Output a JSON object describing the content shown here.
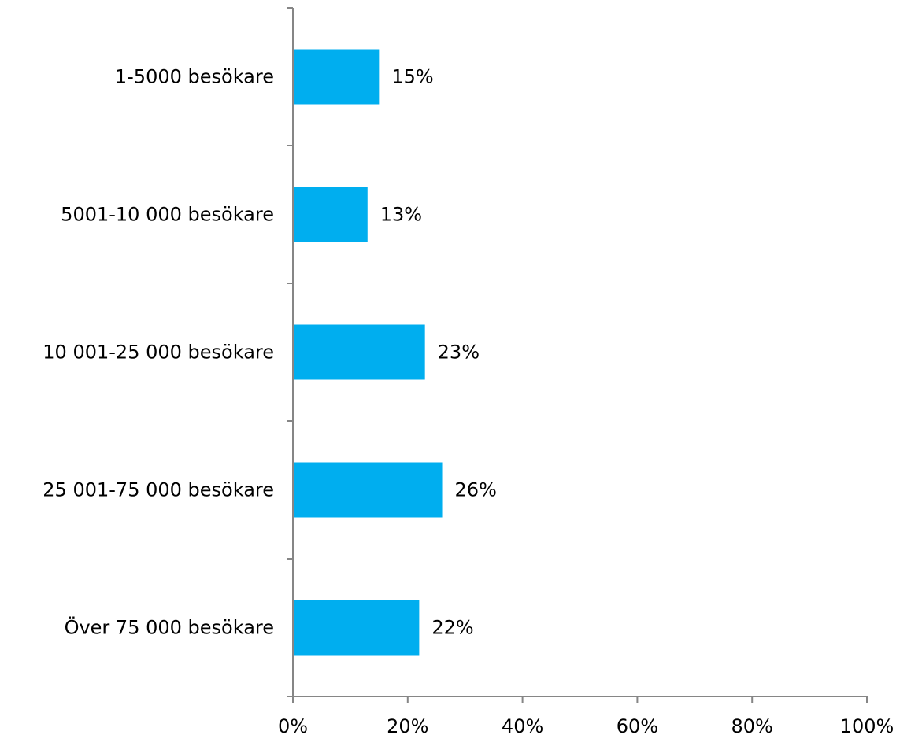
{
  "chart_data": {
    "type": "bar",
    "orientation": "horizontal",
    "categories": [
      "1-5000 besökare",
      "5001-10 000 besökare",
      "10 001-25 000 besökare",
      "25 001-75 000 besökare",
      "Över 75 000 besökare"
    ],
    "values": [
      15,
      13,
      23,
      26,
      22
    ],
    "data_labels": [
      "15%",
      "13%",
      "23%",
      "26%",
      "22%"
    ],
    "xlim": [
      0,
      100
    ],
    "x_ticks": [
      0,
      20,
      40,
      60,
      80,
      100
    ],
    "x_tick_labels": [
      "0%",
      "20%",
      "40%",
      "60%",
      "80%",
      "100%"
    ],
    "grid": false,
    "legend": "none",
    "colors": {
      "bar": "#00AEEF",
      "axis": "#868686",
      "text": "#000000"
    }
  }
}
